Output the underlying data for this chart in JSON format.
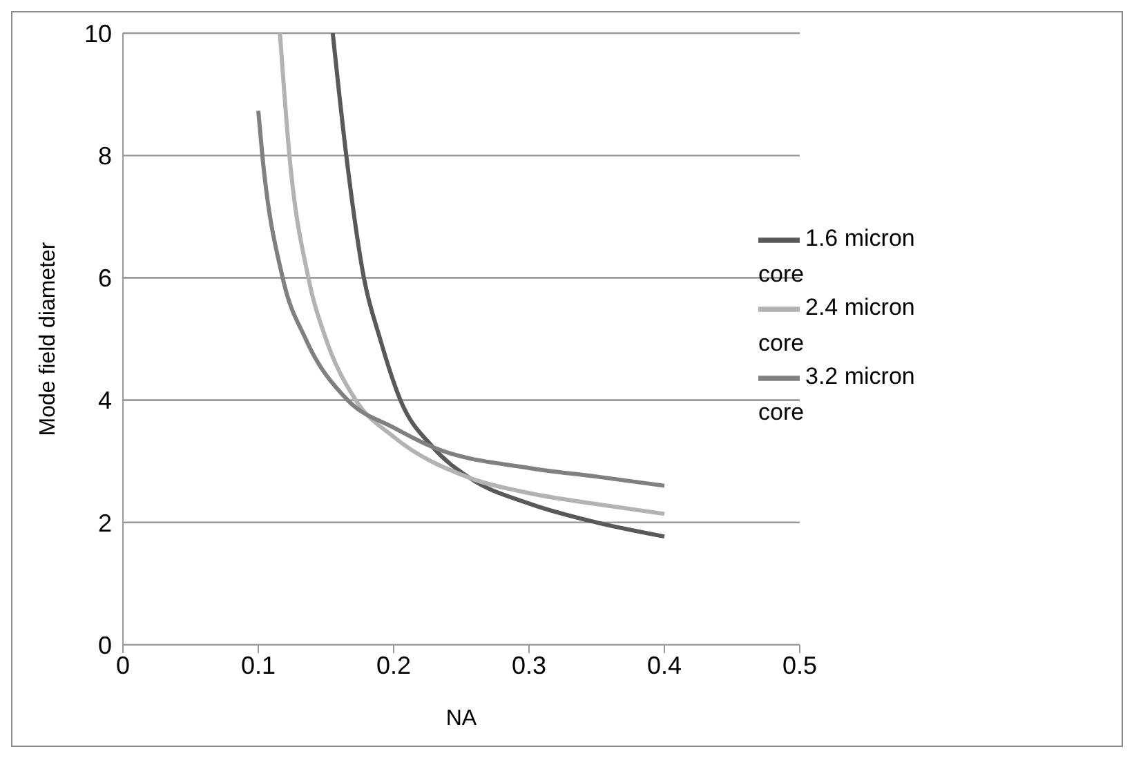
{
  "chart_data": {
    "type": "line",
    "xlabel": "NA",
    "ylabel": "Mode field diameter",
    "xlim": [
      0,
      0.5
    ],
    "xticks": [
      0,
      0.1,
      0.2,
      0.3,
      0.4,
      0.5
    ],
    "ylim": [
      0,
      10
    ],
    "yticks": [
      0,
      2,
      4,
      6,
      8,
      10
    ],
    "grid": "y",
    "legend": "top right",
    "marker": "none",
    "line_style": "solid",
    "series": [
      {
        "name": "1.6 micron core",
        "color": "#595959",
        "x": [
          0.155,
          0.165,
          0.178,
          0.19,
          0.205,
          0.229,
          0.256,
          0.3,
          0.35,
          0.4
        ],
        "values": [
          10,
          8,
          6,
          5,
          4,
          3.23,
          2.73,
          2.31,
          2.0,
          1.77
        ]
      },
      {
        "name": "2.4 micron core",
        "color": "#b3b3b3",
        "x": [
          0.116,
          0.123,
          0.137,
          0.15,
          0.172,
          0.2,
          0.256,
          0.3,
          0.35,
          0.4
        ],
        "values": [
          10,
          8,
          6,
          5,
          4,
          3.4,
          2.73,
          2.48,
          2.3,
          2.14
        ]
      },
      {
        "name": "3.2 micron core",
        "color": "#808080",
        "x": [
          0.1,
          0.103,
          0.118,
          0.135,
          0.166,
          0.2,
          0.229,
          0.3,
          0.35,
          0.4
        ],
        "values": [
          8.73,
          8,
          6,
          5,
          4,
          3.55,
          3.23,
          2.89,
          2.75,
          2.6
        ]
      }
    ]
  }
}
